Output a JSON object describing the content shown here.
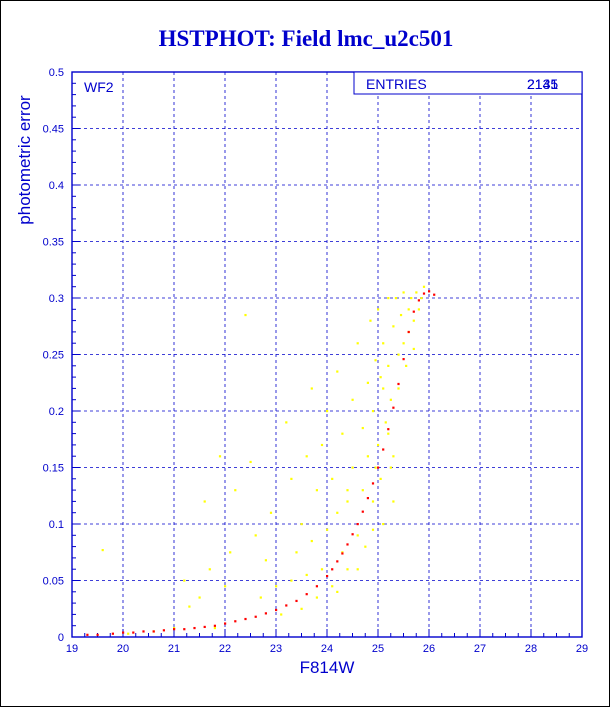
{
  "title": "HSTPHOT: Field lmc_u2c501",
  "panel_label": "WF2",
  "stats": {
    "label": "ENTRIES",
    "values": [
      "2135",
      "2141"
    ]
  },
  "colors": {
    "axes": "#0000cc",
    "grid": "#0000cc",
    "red": "#ff0000",
    "yellow": "#ffff00"
  },
  "chart_data": {
    "type": "scatter",
    "title": "HSTPHOT: Field lmc_u2c501",
    "xlabel": "F814W",
    "ylabel": "photometric error",
    "xlim": [
      19,
      29
    ],
    "ylim": [
      0,
      0.5
    ],
    "xticks": [
      "19",
      "20",
      "21",
      "22",
      "23",
      "24",
      "25",
      "26",
      "27",
      "28",
      "29"
    ],
    "yticks": [
      "0",
      "0.05",
      "0.1",
      "0.15",
      "0.2",
      "0.25",
      "0.3",
      "0.35",
      "0.4",
      "0.45",
      "0.5"
    ],
    "grid": true,
    "series": [
      {
        "color": "#ffff00",
        "points": [
          [
            19.6,
            0.077
          ],
          [
            20.1,
            0.003
          ],
          [
            20.6,
            0.005
          ],
          [
            21.0,
            0.008
          ],
          [
            21.2,
            0.05
          ],
          [
            21.3,
            0.027
          ],
          [
            21.5,
            0.035
          ],
          [
            21.6,
            0.12
          ],
          [
            21.7,
            0.06
          ],
          [
            21.8,
            0.008
          ],
          [
            21.9,
            0.16
          ],
          [
            22.0,
            0.045
          ],
          [
            22.1,
            0.075
          ],
          [
            22.2,
            0.13
          ],
          [
            22.4,
            0.285
          ],
          [
            22.5,
            0.155
          ],
          [
            22.6,
            0.09
          ],
          [
            22.7,
            0.035
          ],
          [
            22.8,
            0.068
          ],
          [
            22.9,
            0.11
          ],
          [
            23.0,
            0.045
          ],
          [
            23.1,
            0.02
          ],
          [
            23.2,
            0.19
          ],
          [
            23.3,
            0.05
          ],
          [
            23.3,
            0.14
          ],
          [
            23.4,
            0.075
          ],
          [
            23.5,
            0.025
          ],
          [
            23.5,
            0.1
          ],
          [
            23.6,
            0.16
          ],
          [
            23.6,
            0.055
          ],
          [
            23.7,
            0.22
          ],
          [
            23.7,
            0.085
          ],
          [
            23.8,
            0.035
          ],
          [
            23.8,
            0.13
          ],
          [
            23.9,
            0.17
          ],
          [
            23.9,
            0.06
          ],
          [
            24.0,
            0.095
          ],
          [
            24.0,
            0.2
          ],
          [
            24.1,
            0.045
          ],
          [
            24.1,
            0.14
          ],
          [
            24.2,
            0.11
          ],
          [
            24.2,
            0.235
          ],
          [
            24.3,
            0.075
          ],
          [
            24.3,
            0.18
          ],
          [
            24.4,
            0.12
          ],
          [
            24.4,
            0.06
          ],
          [
            24.5,
            0.21
          ],
          [
            24.5,
            0.15
          ],
          [
            24.6,
            0.09
          ],
          [
            24.6,
            0.26
          ],
          [
            24.7,
            0.13
          ],
          [
            24.7,
            0.185
          ],
          [
            24.75,
            0.08
          ],
          [
            24.8,
            0.225
          ],
          [
            24.8,
            0.16
          ],
          [
            24.85,
            0.28
          ],
          [
            24.9,
            0.12
          ],
          [
            24.9,
            0.2
          ],
          [
            24.95,
            0.245
          ],
          [
            25.0,
            0.17
          ],
          [
            25.0,
            0.29
          ],
          [
            25.05,
            0.14
          ],
          [
            25.1,
            0.22
          ],
          [
            25.1,
            0.26
          ],
          [
            25.15,
            0.19
          ],
          [
            25.2,
            0.3
          ],
          [
            25.2,
            0.24
          ],
          [
            25.25,
            0.21
          ],
          [
            25.3,
            0.275
          ],
          [
            25.3,
            0.16
          ],
          [
            25.35,
            0.3
          ],
          [
            25.4,
            0.25
          ],
          [
            25.4,
            0.22
          ],
          [
            25.45,
            0.285
          ],
          [
            25.5,
            0.26
          ],
          [
            25.5,
            0.305
          ],
          [
            25.55,
            0.24
          ],
          [
            25.6,
            0.29
          ],
          [
            25.6,
            0.27
          ],
          [
            25.65,
            0.3
          ],
          [
            25.7,
            0.28
          ],
          [
            25.7,
            0.255
          ],
          [
            25.75,
            0.305
          ],
          [
            25.8,
            0.29
          ],
          [
            25.85,
            0.3
          ],
          [
            25.9,
            0.31
          ],
          [
            25.1,
            0.1
          ],
          [
            24.9,
            0.095
          ],
          [
            24.6,
            0.06
          ],
          [
            24.2,
            0.04
          ],
          [
            24.4,
            0.13
          ],
          [
            25.3,
            0.12
          ],
          [
            25.2,
            0.18
          ],
          [
            24.95,
            0.15
          ],
          [
            25.05,
            0.23
          ],
          [
            25.25,
            0.15
          ]
        ]
      },
      {
        "color": "#ff0000",
        "points": [
          [
            19.3,
            0.002
          ],
          [
            19.5,
            0.002
          ],
          [
            19.8,
            0.003
          ],
          [
            20.0,
            0.004
          ],
          [
            20.2,
            0.004
          ],
          [
            20.4,
            0.005
          ],
          [
            20.6,
            0.005
          ],
          [
            20.8,
            0.006
          ],
          [
            21.0,
            0.007
          ],
          [
            21.2,
            0.007
          ],
          [
            21.4,
            0.008
          ],
          [
            21.6,
            0.009
          ],
          [
            21.8,
            0.01
          ],
          [
            22.0,
            0.012
          ],
          [
            22.2,
            0.014
          ],
          [
            22.4,
            0.016
          ],
          [
            22.6,
            0.018
          ],
          [
            22.8,
            0.021
          ],
          [
            23.0,
            0.024
          ],
          [
            23.2,
            0.028
          ],
          [
            23.4,
            0.032
          ],
          [
            23.6,
            0.038
          ],
          [
            23.8,
            0.045
          ],
          [
            24.0,
            0.054
          ],
          [
            24.1,
            0.06
          ],
          [
            24.2,
            0.067
          ],
          [
            24.3,
            0.074
          ],
          [
            24.4,
            0.082
          ],
          [
            24.5,
            0.091
          ],
          [
            24.6,
            0.1
          ],
          [
            24.7,
            0.111
          ],
          [
            24.8,
            0.123
          ],
          [
            24.9,
            0.136
          ],
          [
            25.0,
            0.15
          ],
          [
            25.1,
            0.166
          ],
          [
            25.2,
            0.184
          ],
          [
            25.3,
            0.203
          ],
          [
            25.4,
            0.224
          ],
          [
            25.5,
            0.246
          ],
          [
            25.6,
            0.27
          ],
          [
            25.7,
            0.288
          ],
          [
            25.8,
            0.298
          ],
          [
            25.9,
            0.304
          ],
          [
            26.0,
            0.306
          ],
          [
            26.1,
            0.303
          ]
        ]
      }
    ]
  }
}
